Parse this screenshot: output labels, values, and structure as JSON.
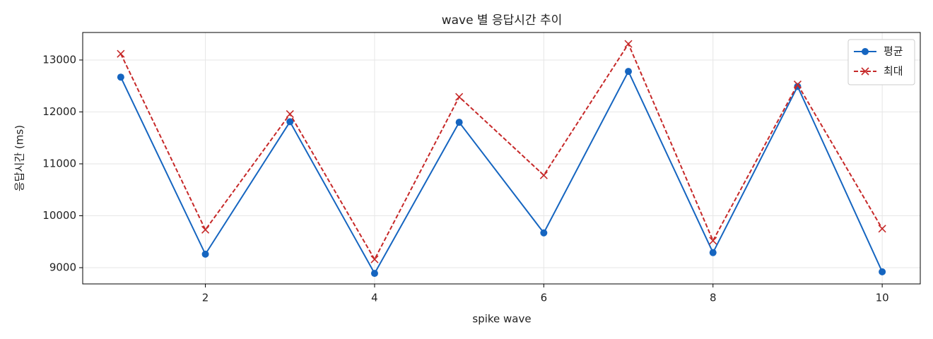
{
  "chart_data": {
    "type": "line",
    "title": "wave 별 응답시간 추이",
    "x_label": "spike wave",
    "y_label": "응답시간 (ms)",
    "x": [
      1,
      2,
      3,
      4,
      5,
      6,
      7,
      8,
      9,
      10
    ],
    "series": [
      {
        "name": "평균",
        "color": "#1565c0",
        "marker": "o",
        "linestyle": "solid",
        "values": [
          12670,
          9260,
          11810,
          8890,
          11800,
          9670,
          12780,
          9290,
          12490,
          8920
        ]
      },
      {
        "name": "최대",
        "color": "#c62828",
        "marker": "x",
        "linestyle": "dashed",
        "values": [
          13120,
          9730,
          11960,
          9160,
          12290,
          10780,
          13310,
          9520,
          12530,
          9750
        ]
      }
    ],
    "xlim": [
      0.55,
      10.45
    ],
    "ylim": [
      8687,
      13530
    ],
    "xticks": [
      2,
      4,
      6,
      8,
      10
    ],
    "yticks": [
      9000,
      10000,
      11000,
      12000,
      13000
    ],
    "grid": true,
    "legend": "upper-right"
  }
}
